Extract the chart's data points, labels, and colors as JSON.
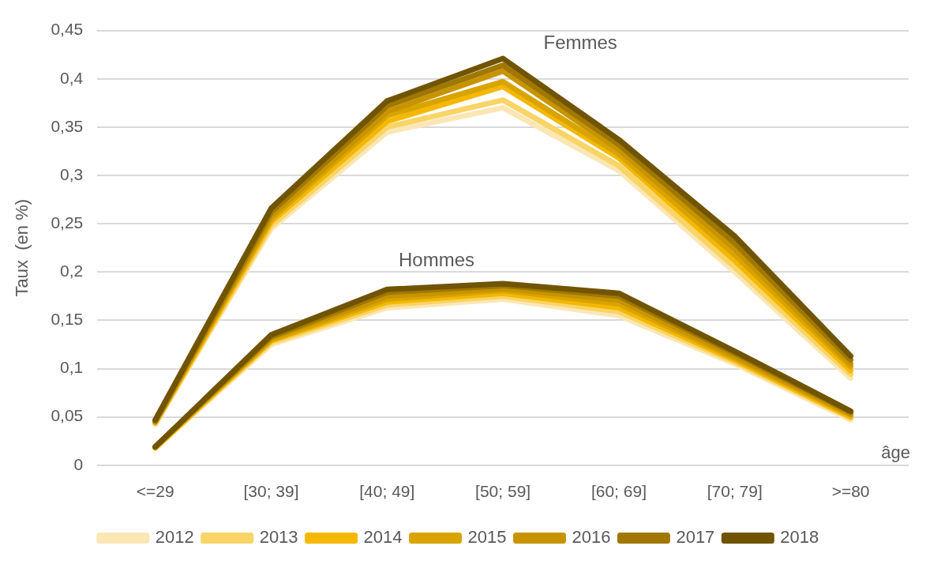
{
  "chart_data": {
    "type": "line",
    "ylabel": "Taux  (en %)",
    "xlabel": "âge",
    "categories": [
      "<=29",
      "[30; 39]",
      "[40; 49]",
      "[50; 59]",
      "[60; 69]",
      "[70; 79]",
      ">=80"
    ],
    "ylim": [
      0,
      0.45
    ],
    "yticks": [
      0,
      {
        "value": 0.05,
        "label": "0,05"
      },
      {
        "value": 0.1,
        "label": "0,1"
      },
      {
        "value": 0.15,
        "label": "0,15"
      },
      {
        "value": 0.2,
        "label": "0,2"
      },
      {
        "value": 0.25,
        "label": "0,25"
      },
      {
        "value": 0.3,
        "label": "0,3"
      },
      {
        "value": 0.35,
        "label": "0,35"
      },
      {
        "value": 0.4,
        "label": "0,4"
      },
      {
        "value": 0.45,
        "label": "0,45"
      }
    ],
    "grid": "y",
    "legend": "bottom",
    "marker": "none",
    "line_style": "solid",
    "annotations": [
      "Femmes",
      "Hommes"
    ],
    "series": [
      {
        "name": "2012",
        "color": "#fbe7b5",
        "values": [
          0.043,
          0.245,
          0.345,
          0.37,
          0.305,
          0.2,
          0.09
        ]
      },
      {
        "name": "2013",
        "color": "#f9d466",
        "values": [
          0.043,
          0.248,
          0.35,
          0.378,
          0.31,
          0.205,
          0.094
        ]
      },
      {
        "name": "2014",
        "color": "#f5b800",
        "values": [
          0.044,
          0.252,
          0.356,
          0.392,
          0.318,
          0.212,
          0.098
        ]
      },
      {
        "name": "2015",
        "color": "#d9a400",
        "values": [
          0.045,
          0.255,
          0.362,
          0.397,
          0.322,
          0.218,
          0.102
        ]
      },
      {
        "name": "2016",
        "color": "#c79400",
        "values": [
          0.045,
          0.258,
          0.366,
          0.408,
          0.327,
          0.224,
          0.105
        ]
      },
      {
        "name": "2017",
        "color": "#a07800",
        "values": [
          0.046,
          0.262,
          0.372,
          0.414,
          0.332,
          0.23,
          0.109
        ]
      },
      {
        "name": "2018",
        "color": "#705400",
        "values": [
          0.047,
          0.266,
          0.377,
          0.421,
          0.337,
          0.237,
          0.113
        ]
      },
      {
        "color": "#fbe7b5",
        "values": [
          0.018,
          0.125,
          0.163,
          0.172,
          0.155,
          0.105,
          0.047
        ]
      },
      {
        "color": "#f9d466",
        "values": [
          0.018,
          0.127,
          0.166,
          0.175,
          0.159,
          0.107,
          0.049
        ]
      },
      {
        "color": "#f5b800",
        "values": [
          0.018,
          0.129,
          0.169,
          0.178,
          0.163,
          0.109,
          0.05
        ]
      },
      {
        "color": "#d9a400",
        "values": [
          0.019,
          0.13,
          0.172,
          0.181,
          0.167,
          0.111,
          0.052
        ]
      },
      {
        "color": "#c79400",
        "values": [
          0.019,
          0.132,
          0.175,
          0.183,
          0.171,
          0.113,
          0.053
        ]
      },
      {
        "color": "#a07800",
        "values": [
          0.019,
          0.133,
          0.179,
          0.186,
          0.175,
          0.116,
          0.055
        ]
      },
      {
        "color": "#705400",
        "values": [
          0.019,
          0.135,
          0.182,
          0.188,
          0.178,
          0.118,
          0.056
        ]
      }
    ]
  }
}
